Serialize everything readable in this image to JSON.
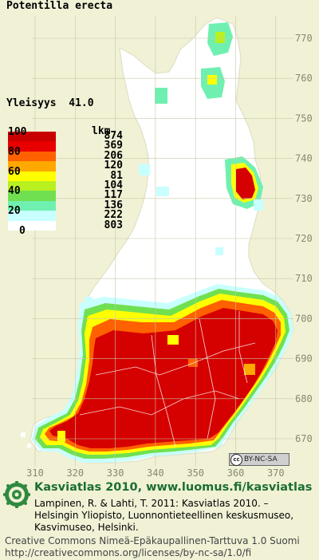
{
  "title": "Potentilla erecta",
  "frequency": {
    "label": "Yleisyys",
    "value": "41.0"
  },
  "legend": {
    "header": "lkm",
    "ticks": [
      "100",
      "80",
      "60",
      "40",
      "20",
      "0"
    ],
    "rows": [
      {
        "color": "#c80000",
        "count": "874"
      },
      {
        "color": "#e80000",
        "count": "369"
      },
      {
        "color": "#ff6000",
        "count": "206"
      },
      {
        "color": "#ffa800",
        "count": "120"
      },
      {
        "color": "#ffff00",
        "count": "81"
      },
      {
        "color": "#b8f020",
        "count": "104"
      },
      {
        "color": "#70e050",
        "count": "117"
      },
      {
        "color": "#70f0b0",
        "count": "136"
      },
      {
        "color": "#c8ffff",
        "count": "222"
      },
      {
        "color": "#ffffff",
        "count": "803"
      }
    ]
  },
  "map": {
    "y_ticks": [
      "770",
      "760",
      "750",
      "740",
      "730",
      "720",
      "710",
      "700",
      "690",
      "680",
      "670"
    ],
    "x_ticks": [
      "310",
      "320",
      "330",
      "340",
      "350",
      "360",
      "370"
    ],
    "land_color": "#ffffff",
    "background_color": "#f1f1d6"
  },
  "license_badge": "BY-NC-SA",
  "license_badge_icon": "cc",
  "credit": {
    "title": "Kasviatlas 2010, www.luomus.fi/kasviatlas",
    "lines": [
      "Lampinen, R. & Lahti, T. 2011: Kasviatlas 2010. –",
      "Helsingin Yliopisto, Luonnontieteellinen keskusmuseo,",
      "Kasvimuseo, Helsinki."
    ]
  },
  "license_lines": [
    "Creative Commons Nimeä-Epäkaupallinen-Tarttuva 1.0 Suomi",
    "http://creativecommons.org/licenses/by-nc-sa/1.0/fi"
  ]
}
